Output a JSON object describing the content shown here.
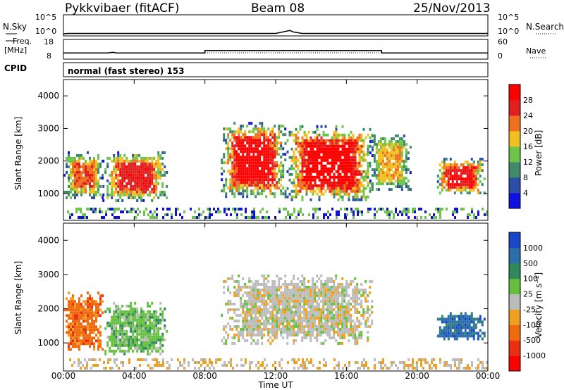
{
  "header": {
    "site": "Pykkvibaer (fitACF)",
    "beam": "Beam 08",
    "date": "25/Nov/2013"
  },
  "strip": {
    "nsky_label": "N.Sky",
    "nsky_ticks": [
      "10^5",
      "10^0"
    ],
    "nsearch_label": "N.Search",
    "nsearch_ticks": [
      "10^5",
      "10^0"
    ],
    "freq_label_1": "Freq.",
    "freq_label_2": "[MHz]",
    "freq_ticks": [
      "18",
      "8"
    ],
    "nave_label": "Nave",
    "nave_ticks": [
      "60",
      "0"
    ],
    "cpid_label": "CPID",
    "cpid_text": "normal (fast stereo) 153"
  },
  "axis": {
    "x_ticks": [
      "00:00",
      "04:00",
      "08:00",
      "12:00",
      "16:00",
      "20:00",
      "00:00"
    ],
    "x_label": "Time UT",
    "y_label": "Slant Range [km]",
    "y_ticks": [
      "1000",
      "2000",
      "3000",
      "4000"
    ]
  },
  "power_scale": {
    "label": "Power [dB]",
    "ticks": [
      "4",
      "8",
      "12",
      "16",
      "20",
      "24",
      "28"
    ],
    "colors": [
      "#1010e0",
      "#2a4ea8",
      "#3e8a6a",
      "#6cc44a",
      "#f0c020",
      "#f07020",
      "#e02020",
      "#ff0000"
    ]
  },
  "velocity_scale": {
    "label": "Velocity [m s⁻¹]",
    "ticks": [
      "1000",
      "500",
      "100",
      "25",
      "-25",
      "-100",
      "-500",
      "-1000"
    ],
    "colors": [
      "#1848c8",
      "#2c6ea8",
      "#2f8a5a",
      "#66c040",
      "#bcbcbc",
      "#f0a020",
      "#f06a10",
      "#e83010",
      "#ff0000"
    ]
  },
  "chart_data": [
    {
      "type": "line",
      "name": "N.Sky / N.Search",
      "x_unit": "hours UT",
      "x": [
        0,
        0.3,
        1,
        2,
        3,
        4,
        5,
        6,
        7,
        8,
        9,
        10,
        11,
        12,
        12.8,
        13,
        13.5,
        14,
        16,
        18,
        20,
        22,
        24
      ],
      "y_log10": [
        0,
        0.1,
        0.1,
        0.1,
        0.1,
        0.1,
        0.1,
        0.1,
        0.1,
        0.1,
        0.1,
        0.1,
        0.1,
        0.1,
        0.9,
        0.5,
        0.1,
        0.1,
        0.1,
        0.1,
        0.1,
        0.1,
        0.1
      ]
    },
    {
      "type": "line",
      "name": "Freq / Nave",
      "x_unit": "hours UT",
      "freq_x": [
        0,
        2.5,
        2.8,
        3,
        7.99,
        8,
        17.99,
        18,
        24
      ],
      "freq_mhz": [
        11.0,
        11.0,
        11.4,
        11.0,
        11.0,
        12.3,
        12.3,
        11.0,
        11.0
      ],
      "nave_level": 30
    },
    {
      "type": "heatmap",
      "name": "Power",
      "quantity": "Power [dB]",
      "x_range_hours": [
        0,
        24
      ],
      "y_range_km": [
        180,
        4500
      ],
      "patches": [
        {
          "t0": 0.0,
          "t1": 2.2,
          "r0": 900,
          "r1": 2300,
          "peak": 22
        },
        {
          "t0": 2.2,
          "t1": 5.8,
          "r0": 800,
          "r1": 2300,
          "peak": 26
        },
        {
          "t0": 8.9,
          "t1": 12.5,
          "r0": 900,
          "r1": 3200,
          "peak": 30
        },
        {
          "t0": 12.5,
          "t1": 17.5,
          "r0": 800,
          "r1": 3100,
          "peak": 30
        },
        {
          "t0": 17.3,
          "t1": 19.6,
          "r0": 1100,
          "r1": 2900,
          "peak": 18
        },
        {
          "t0": 21.0,
          "t1": 23.8,
          "r0": 1000,
          "r1": 2100,
          "peak": 28
        }
      ]
    },
    {
      "type": "heatmap",
      "name": "Velocity",
      "quantity": "Velocity [m s⁻¹]",
      "x_range_hours": [
        0,
        24
      ],
      "y_range_km": [
        180,
        4500
      ],
      "patches": [
        {
          "t0": 0.0,
          "t1": 2.2,
          "r0": 800,
          "r1": 2500,
          "dominant": "-100 to -500"
        },
        {
          "t0": 2.2,
          "t1": 5.8,
          "r0": 700,
          "r1": 2200,
          "dominant": "25 to 100"
        },
        {
          "t0": 8.9,
          "t1": 17.5,
          "r0": 1000,
          "r1": 3000,
          "dominant": "-25 to 25"
        },
        {
          "t0": 21.0,
          "t1": 23.8,
          "r0": 1100,
          "r1": 1900,
          "dominant": "100 to 1000"
        }
      ]
    }
  ]
}
